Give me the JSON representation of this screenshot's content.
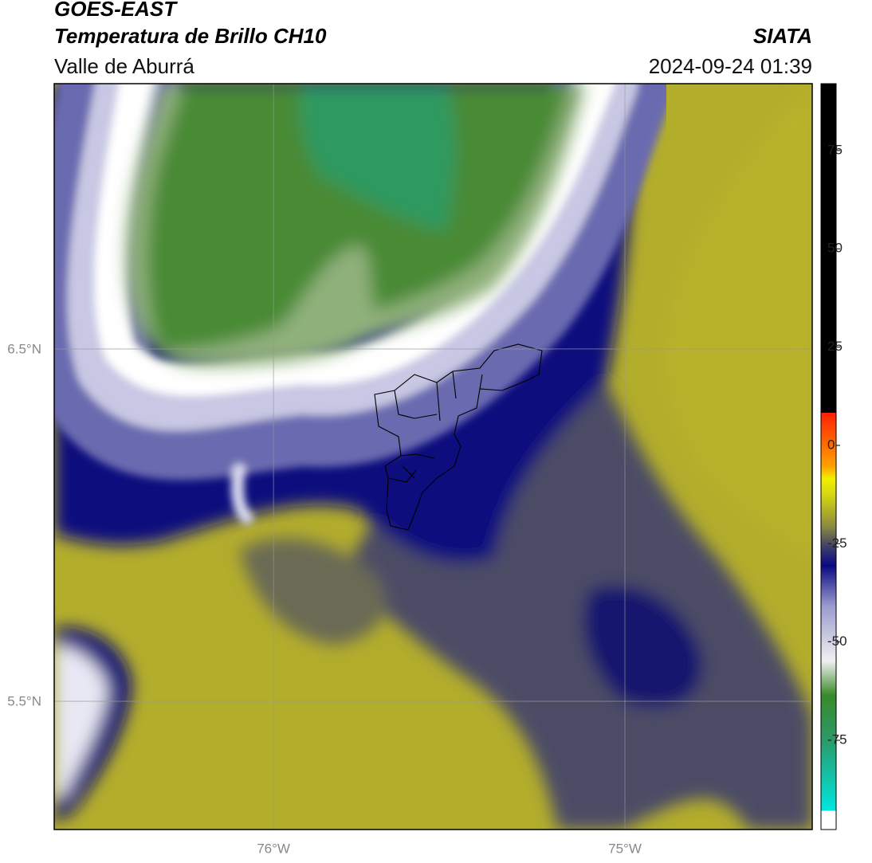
{
  "header": {
    "title": "GOES-EAST",
    "subtitle": "Temperatura de Brillo CH10",
    "region": "Valle de Aburrá",
    "source": "SIATA",
    "datetime": "2024-09-24 01:39"
  },
  "map": {
    "xlim": [
      -76.624,
      -74.467
    ],
    "ylim": [
      5.136,
      7.253
    ],
    "xticks": [
      {
        "value": -76,
        "label": "76°W"
      },
      {
        "value": -75,
        "label": "75°W"
      }
    ],
    "yticks": [
      {
        "value": 6.5,
        "label": "6.5°N"
      },
      {
        "value": 5.5,
        "label": "5.5°N"
      }
    ],
    "grid": true
  },
  "colorbar": {
    "lim": [
      -97.7,
      92
    ],
    "ticks": [
      75,
      50,
      25,
      0,
      -25,
      -50,
      -75
    ]
  }
}
